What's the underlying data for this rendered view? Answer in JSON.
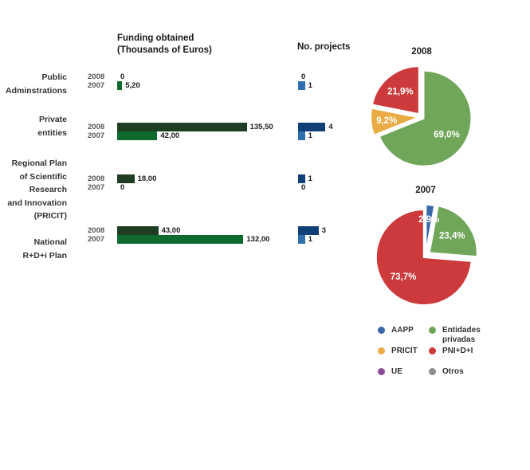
{
  "headers": {
    "funding": "Funding obtained\n(Thousands of Euros)",
    "projects": "No. projects"
  },
  "years": [
    "2008",
    "2007"
  ],
  "colors": {
    "funding_2008": "#1e3d22",
    "funding_2007": "#0f6a2e",
    "projects_2008": "#113f78",
    "projects_2007": "#2f6fad"
  },
  "chart_data": [
    {
      "type": "bar",
      "orientation": "horizontal",
      "title": "Funding obtained (Thousands of Euros)",
      "categories": [
        "Public\nAdminstrations",
        "Private\nentities",
        "Regional Plan\nof Scientific\nResearch\nand Innovation\n(PRICIT)",
        "National\nR+D+i Plan"
      ],
      "series": [
        {
          "name": "2008",
          "values": [
            0,
            135.5,
            18.0,
            43.0
          ],
          "labels": [
            "0",
            "135,50",
            "18,00",
            "43,00"
          ]
        },
        {
          "name": "2007",
          "values": [
            5.2,
            42.0,
            0,
            132.0
          ],
          "labels": [
            "5,20",
            "42,00",
            "0",
            "132,00"
          ]
        }
      ]
    },
    {
      "type": "bar",
      "orientation": "horizontal",
      "title": "No. projects",
      "categories": [
        "Public\nAdminstrations",
        "Private\nentities",
        "Regional Plan\nof Scientific\nResearch\nand Innovation\n(PRICIT)",
        "National\nR+D+i Plan"
      ],
      "series": [
        {
          "name": "2008",
          "values": [
            0,
            4,
            1,
            3
          ],
          "labels": [
            "0",
            "4",
            "1",
            "3"
          ]
        },
        {
          "name": "2007",
          "values": [
            1,
            1,
            0,
            1
          ],
          "labels": [
            "1",
            "1",
            "0",
            "1"
          ]
        }
      ]
    },
    {
      "type": "pie",
      "title": "2008",
      "slices": [
        {
          "name": "AAPP",
          "value": 0,
          "label": "",
          "color": "#3a67a8"
        },
        {
          "name": "Entidades privadas",
          "value": 69.0,
          "label": "69,0%",
          "color": "#6fa65a"
        },
        {
          "name": "PRICIT",
          "value": 9.2,
          "label": "9,2%",
          "color": "#e9ac45"
        },
        {
          "name": "PNI+D+I",
          "value": 21.9,
          "label": "21,9%",
          "color": "#cc3a3c"
        }
      ]
    },
    {
      "type": "pie",
      "title": "2007",
      "slices": [
        {
          "name": "AAPP",
          "value": 2.9,
          "label": "2,9%",
          "color": "#3a67a8"
        },
        {
          "name": "Entidades privadas",
          "value": 23.4,
          "label": "23,4%",
          "color": "#6fa65a"
        },
        {
          "name": "PRICIT",
          "value": 0,
          "label": "",
          "color": "#e9ac45"
        },
        {
          "name": "PNI+D+I",
          "value": 73.7,
          "label": "73,7%",
          "color": "#cc3a3c"
        }
      ]
    }
  ],
  "legend": [
    {
      "label": "AAPP",
      "color": "#3a67a8"
    },
    {
      "label": "Entidades\nprivadas",
      "color": "#6fa65a"
    },
    {
      "label": "PRICIT",
      "color": "#e9ac45"
    },
    {
      "label": "PNI+D+I",
      "color": "#cc3a3c"
    },
    {
      "label": "UE",
      "color": "#8a4b96"
    },
    {
      "label": "Otros",
      "color": "#8c8c8c"
    }
  ]
}
